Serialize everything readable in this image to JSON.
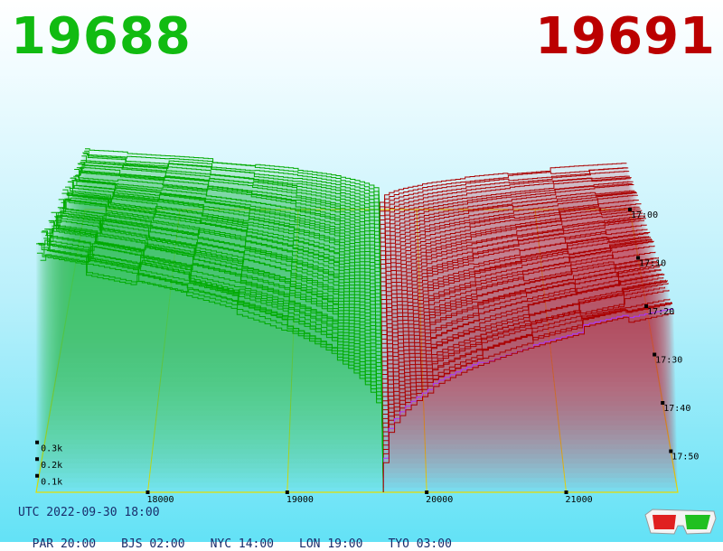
{
  "header": {
    "bid_price": "19688",
    "ask_price": "19691",
    "bid_color": "#11bb11",
    "ask_color": "#bb0000"
  },
  "footer": {
    "utc": "UTC 2022-09-30 18:00",
    "timezones": [
      {
        "label": "PAR 20:00"
      },
      {
        "label": "BJS 02:00"
      },
      {
        "label": "NYC 14:00"
      },
      {
        "label": "LON 19:00"
      },
      {
        "label": "TYO 03:00"
      }
    ]
  },
  "icons": {
    "glasses": "3d-glasses-icon"
  },
  "chart_data": {
    "type": "area",
    "title": "",
    "x_ticks": [
      18000,
      19000,
      20000,
      21000
    ],
    "x_tick_labels": [
      "18000",
      "19000",
      "20000",
      "21000"
    ],
    "time_ticks": [
      "17:00",
      "17:10",
      "17:20",
      "17:30",
      "17:40",
      "17:50"
    ],
    "volume_ticks": [
      "0.1k",
      "0.2k",
      "0.3k"
    ],
    "bid_side": {
      "name": "",
      "color": "#00aa00"
    },
    "ask_side": {
      "name": "",
      "color": "#aa0000"
    },
    "latest_ask_color": "#aa33ff",
    "slice_count": 60,
    "grid": true
  }
}
